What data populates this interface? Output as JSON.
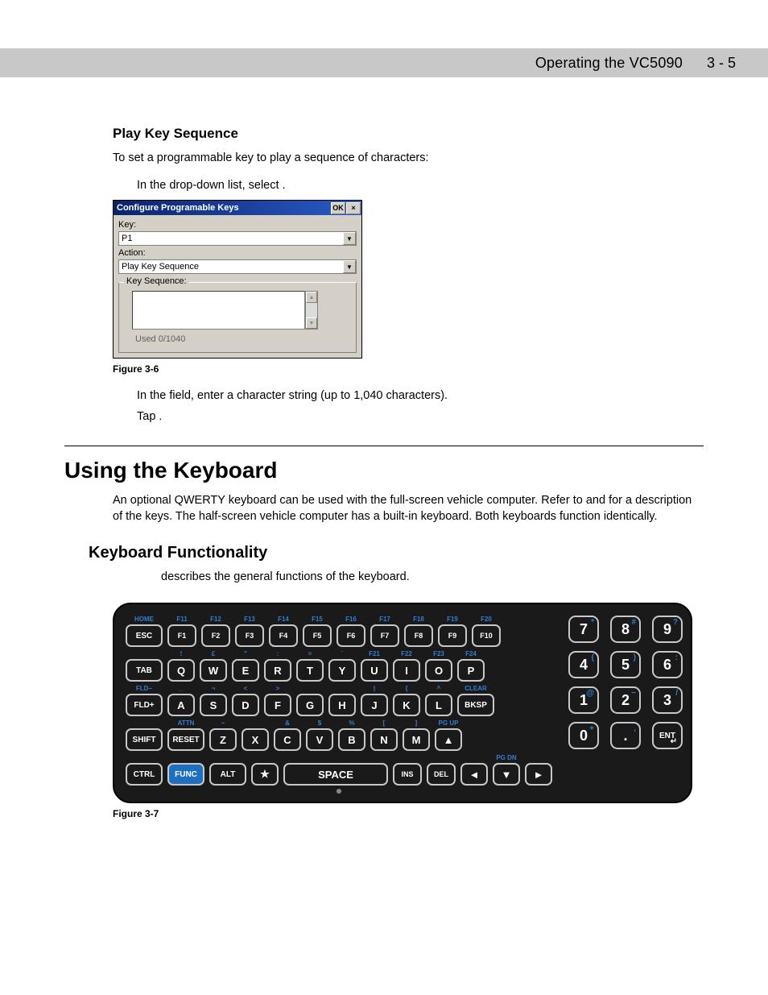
{
  "header": {
    "title": "Operating the VC5090",
    "page": "3 - 5"
  },
  "sec_play": {
    "heading": "Play Key Sequence",
    "intro": "To set a programmable key to play a sequence of characters:",
    "step1_a": "In the ",
    "step1_b": " drop-down list, select ",
    "step1_c": ".",
    "step2_a": "In the ",
    "step2_b": " field, enter a character string (up to 1,040 characters).",
    "step3_a": "Tap ",
    "step3_b": "."
  },
  "dialog": {
    "title": "Configure Programable Keys",
    "ok": "OK",
    "close": "×",
    "key_label": "Key:",
    "key_value": "P1",
    "action_label": "Action:",
    "action_value": "Play Key Sequence",
    "group_label": "Key Sequence:",
    "used": "Used  0/1040"
  },
  "fig36": "Figure 3-6",
  "major": "Using the Keyboard",
  "kb_para_a": "An optional QWERTY keyboard can be used with the full-screen vehicle computer. Refer to ",
  "kb_para_b": " and ",
  "kb_para_c": " for a description of the keys. The half-screen vehicle computer has a built-in keyboard. Both keyboards function identically.",
  "sub": "Keyboard Functionality",
  "sub_body": "describes the general functions of the keyboard.",
  "fig37": "Figure 3-7",
  "kb": {
    "row1_top": [
      "HOME",
      "F11",
      "F12",
      "F13",
      "F14",
      "F15",
      "F16",
      "F17",
      "F18",
      "F19",
      "F20"
    ],
    "row1": [
      "ESC",
      "F1",
      "F2",
      "F3",
      "F4",
      "F5",
      "F6",
      "F7",
      "F8",
      "F9",
      "F10"
    ],
    "row2_top": [
      "",
      "!",
      "£",
      "\"",
      ":",
      "=",
      "`",
      "F21",
      "F22",
      "F23",
      "F24"
    ],
    "row2": [
      "TAB",
      "Q",
      "W",
      "E",
      "R",
      "T",
      "Y",
      "U",
      "I",
      "O",
      "P"
    ],
    "row3_top": [
      "FLD−",
      "_",
      "¬",
      "<",
      ">",
      "",
      "",
      "|",
      "{",
      "^",
      "CLEAR"
    ],
    "row3": [
      "FLD+",
      "A",
      "S",
      "D",
      "F",
      "G",
      "H",
      "J",
      "K",
      "L",
      "BKSP"
    ],
    "row4_top": [
      "",
      "ATTN",
      "~",
      "",
      "&",
      "$",
      "%",
      "[",
      "]",
      "PG UP"
    ],
    "row4": [
      "SHIFT",
      "RESET",
      "Z",
      "X",
      "C",
      "V",
      "B",
      "N",
      "M",
      "▲"
    ],
    "row5_top_pgdn": "PG DN",
    "row5": [
      "CTRL",
      "FUNC",
      "ALT",
      "★",
      "SPACE",
      "INS",
      "DEL",
      "◄",
      "▼",
      "►"
    ],
    "numpad": {
      "r1": [
        {
          "n": "7",
          "s": "*"
        },
        {
          "n": "8",
          "s": "#"
        },
        {
          "n": "9",
          "s": "?"
        }
      ],
      "r2": [
        {
          "n": "4",
          "s": "("
        },
        {
          "n": "5",
          "s": ")"
        },
        {
          "n": "6",
          "s": ":"
        }
      ],
      "r3": [
        {
          "n": "1",
          "s": "@"
        },
        {
          "n": "2",
          "s": "−"
        },
        {
          "n": "3",
          "s": "/"
        }
      ],
      "r4": [
        {
          "n": "0",
          "s": "+"
        },
        {
          "n": ".",
          "s": ","
        },
        {
          "n": "ENT",
          "s": ""
        }
      ]
    }
  }
}
